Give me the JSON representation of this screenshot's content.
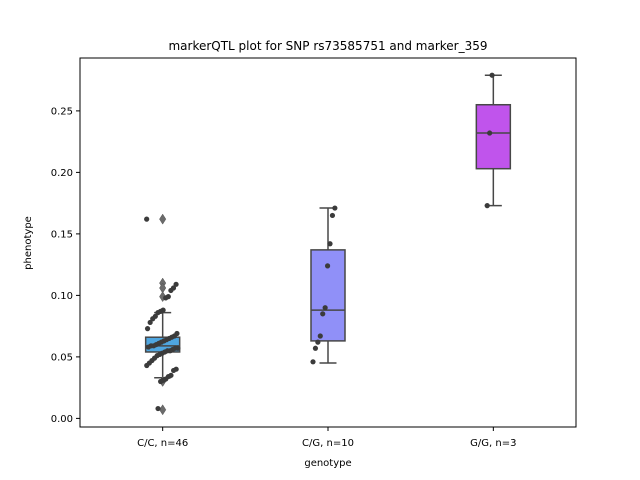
{
  "chart_data": {
    "type": "box",
    "title": "markerQTL plot for SNP rs73585751 and marker_359",
    "xlabel": "genotype",
    "ylabel": "phenotype",
    "ylim": [
      -0.007,
      0.293
    ],
    "yticks": [
      "0.00",
      "0.05",
      "0.10",
      "0.15",
      "0.20",
      "0.25"
    ],
    "grid": false,
    "categories": [
      "C/C, n=46",
      "C/G, n=10",
      "G/G, n=3"
    ],
    "colors": [
      "#4fa6e0",
      "#9090f8",
      "#c054ec"
    ],
    "boxes": [
      {
        "q1": 0.054,
        "median": 0.059,
        "q3": 0.066,
        "whisker_low": 0.033,
        "whisker_high": 0.086,
        "outliers": [
          0.162,
          0.11,
          0.106,
          0.099,
          0.03,
          0.007
        ]
      },
      {
        "q1": 0.063,
        "median": 0.088,
        "q3": 0.137,
        "whisker_low": 0.045,
        "whisker_high": 0.171,
        "outliers": []
      },
      {
        "q1": 0.203,
        "median": 0.232,
        "q3": 0.255,
        "whisker_low": 0.173,
        "whisker_high": 0.279,
        "outliers": []
      }
    ],
    "points": [
      {
        "group": 0,
        "values": [
          0.162,
          0.109,
          0.106,
          0.104,
          0.099,
          0.098,
          0.088,
          0.087,
          0.086,
          0.083,
          0.081,
          0.078,
          0.073,
          0.069,
          0.067,
          0.066,
          0.065,
          0.064,
          0.063,
          0.062,
          0.061,
          0.06,
          0.059,
          0.059,
          0.058,
          0.057,
          0.057,
          0.056,
          0.055,
          0.055,
          0.054,
          0.053,
          0.052,
          0.051,
          0.049,
          0.047,
          0.045,
          0.043,
          0.04,
          0.039,
          0.035,
          0.034,
          0.032,
          0.031,
          0.03,
          0.008
        ]
      },
      {
        "group": 1,
        "values": [
          0.171,
          0.165,
          0.142,
          0.124,
          0.09,
          0.085,
          0.067,
          0.062,
          0.057,
          0.046
        ]
      },
      {
        "group": 2,
        "values": [
          0.279,
          0.232,
          0.173
        ]
      }
    ]
  }
}
